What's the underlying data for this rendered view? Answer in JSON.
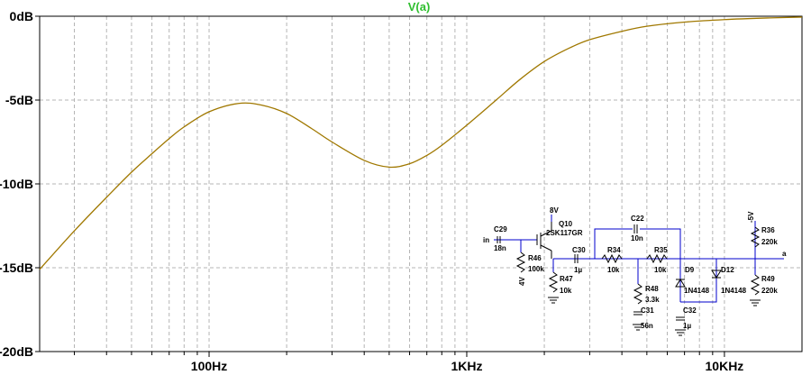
{
  "chart_data": {
    "type": "line",
    "title": "V(a)",
    "title_color": "#2fbf2f",
    "trace_color": "#a07800",
    "xscale": "log",
    "xlim": [
      22,
      20000
    ],
    "ylim": [
      -20,
      0
    ],
    "grid": true,
    "x_ticks": [
      {
        "value": 100,
        "label": "100Hz"
      },
      {
        "value": 1000,
        "label": "1KHz"
      },
      {
        "value": 10000,
        "label": "10KHz"
      }
    ],
    "y_ticks": [
      {
        "value": 0,
        "label": "0dB"
      },
      {
        "value": -5,
        "label": "-5dB"
      },
      {
        "value": -10,
        "label": "-10dB"
      },
      {
        "value": -15,
        "label": "-15dB"
      },
      {
        "value": -20,
        "label": "-20dB"
      }
    ],
    "series": [
      {
        "name": "V(a)",
        "x": [
          22,
          30,
          40,
          50,
          60,
          70,
          80,
          100,
          130,
          160,
          200,
          250,
          300,
          400,
          500,
          600,
          700,
          800,
          1000,
          1300,
          1600,
          2000,
          2500,
          3000,
          4000,
          5000,
          7000,
          10000,
          15000,
          20000
        ],
        "y": [
          -15.1,
          -12.8,
          -10.8,
          -9.3,
          -8.2,
          -7.3,
          -6.6,
          -5.7,
          -5.2,
          -5.3,
          -5.8,
          -6.7,
          -7.5,
          -8.6,
          -9.0,
          -8.8,
          -8.3,
          -7.7,
          -6.5,
          -5.0,
          -3.8,
          -2.7,
          -1.9,
          -1.4,
          -0.9,
          -0.6,
          -0.35,
          -0.2,
          -0.1,
          -0.05
        ]
      }
    ]
  },
  "schematic": {
    "labels": {
      "C29": "C29",
      "C29v": "18n",
      "in": "in",
      "Q10": "Q10",
      "Q10v": "2SK117GR",
      "v8": "8V",
      "R46": "R46",
      "R46v": "100k",
      "v4": "4V",
      "C30": "C30",
      "C30v": "1µ",
      "R47": "R47",
      "R47v": "10k",
      "R34": "R34",
      "R34v": "10k",
      "C22": "C22",
      "C22v": "10n",
      "R35": "R35",
      "R35v": "10k",
      "R48": "R48",
      "R48v": "3.3k",
      "C31": "C31",
      "C31v": "56n",
      "D9": "D9",
      "D9v": "1N4148",
      "C32": "C32",
      "C32v": "1µ",
      "D12": "D12",
      "D12v": "1N4148",
      "vm5": "-5V",
      "R36": "R36",
      "R36v": "220k",
      "R49": "R49",
      "R49v": "220k",
      "a": "a"
    }
  }
}
